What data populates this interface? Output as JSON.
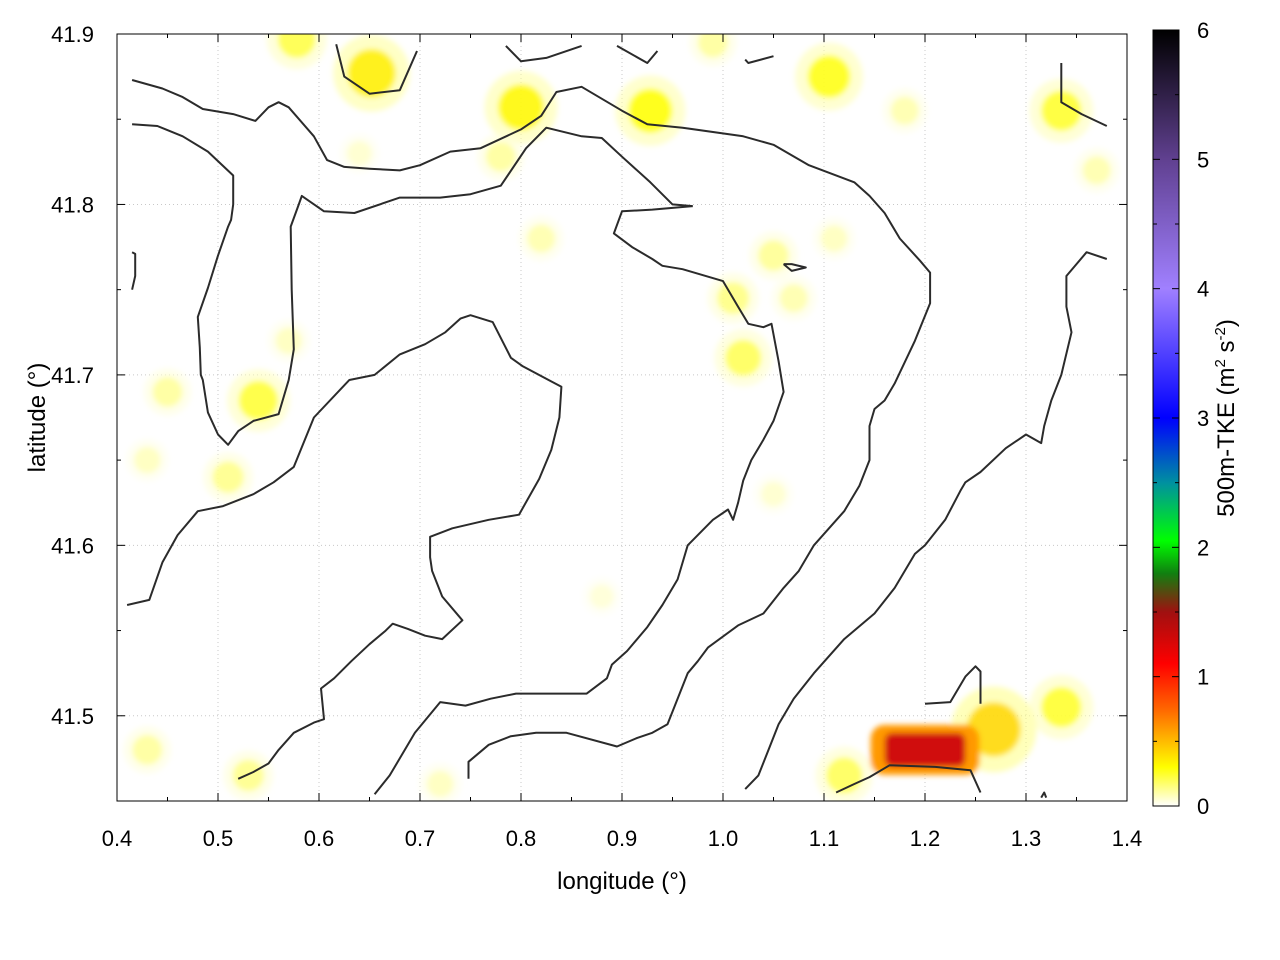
{
  "chart_data": {
    "type": "heatmap",
    "xlabel": "longitude (°)",
    "ylabel": "latitude (°)",
    "colorbar_label_main": "500m-TKE (m",
    "colorbar_label_sup1": "2",
    "colorbar_label_mid": " s",
    "colorbar_label_sup2": "-2",
    "colorbar_label_end": ")",
    "xlim": [
      0.4,
      1.4
    ],
    "ylim": [
      41.45,
      41.9
    ],
    "xticks": [
      0.4,
      0.5,
      0.6,
      0.7,
      0.8,
      0.9,
      1.0,
      1.1,
      1.2,
      1.3,
      1.4
    ],
    "xtick_labels": [
      "0.4",
      "0.5",
      "0.6",
      "0.7",
      "0.8",
      "0.9",
      "1.0",
      "1.1",
      "1.2",
      "1.3",
      "1.4"
    ],
    "yticks": [
      41.5,
      41.6,
      41.7,
      41.8,
      41.9
    ],
    "ytick_labels": [
      "41.5",
      "41.6",
      "41.7",
      "41.8",
      "41.9"
    ],
    "clim": [
      0,
      6
    ],
    "cbar_ticks": [
      0,
      1,
      2,
      3,
      4,
      5,
      6
    ],
    "cbar_tick_labels": [
      "0",
      "1",
      "2",
      "3",
      "4",
      "5",
      "6"
    ],
    "colormap_stops": [
      {
        "v": 0,
        "c": "#ffffff"
      },
      {
        "v": 0.3,
        "c": "#ffff00"
      },
      {
        "v": 0.75,
        "c": "#ff6600"
      },
      {
        "v": 1.1,
        "c": "#ff0000"
      },
      {
        "v": 1.5,
        "c": "#a01010"
      },
      {
        "v": 1.8,
        "c": "#108010"
      },
      {
        "v": 2.05,
        "c": "#00ff00"
      },
      {
        "v": 2.5,
        "c": "#0090a0"
      },
      {
        "v": 3.0,
        "c": "#0000ff"
      },
      {
        "v": 4.0,
        "c": "#a080ff"
      },
      {
        "v": 5.0,
        "c": "#604090"
      },
      {
        "v": 6.0,
        "c": "#000000"
      }
    ],
    "grid": true,
    "hotspots": [
      {
        "lon": 0.578,
        "lat": 41.897,
        "v": 0.22
      },
      {
        "lon": 0.652,
        "lat": 41.877,
        "v": 0.35
      },
      {
        "lon": 0.8,
        "lat": 41.857,
        "v": 0.32
      },
      {
        "lon": 0.78,
        "lat": 41.828,
        "v": 0.12
      },
      {
        "lon": 0.928,
        "lat": 41.855,
        "v": 0.3
      },
      {
        "lon": 0.99,
        "lat": 41.895,
        "v": 0.12
      },
      {
        "lon": 1.105,
        "lat": 41.875,
        "v": 0.28
      },
      {
        "lon": 1.18,
        "lat": 41.855,
        "v": 0.1
      },
      {
        "lon": 1.335,
        "lat": 41.855,
        "v": 0.25
      },
      {
        "lon": 1.37,
        "lat": 41.82,
        "v": 0.1
      },
      {
        "lon": 0.82,
        "lat": 41.78,
        "v": 0.1
      },
      {
        "lon": 1.05,
        "lat": 41.77,
        "v": 0.13
      },
      {
        "lon": 1.01,
        "lat": 41.745,
        "v": 0.15
      },
      {
        "lon": 1.02,
        "lat": 41.71,
        "v": 0.2
      },
      {
        "lon": 1.07,
        "lat": 41.745,
        "v": 0.1
      },
      {
        "lon": 1.11,
        "lat": 41.78,
        "v": 0.08
      },
      {
        "lon": 0.54,
        "lat": 41.685,
        "v": 0.24
      },
      {
        "lon": 0.45,
        "lat": 41.69,
        "v": 0.12
      },
      {
        "lon": 0.51,
        "lat": 41.64,
        "v": 0.14
      },
      {
        "lon": 0.43,
        "lat": 41.65,
        "v": 0.08
      },
      {
        "lon": 0.57,
        "lat": 41.72,
        "v": 0.08
      },
      {
        "lon": 0.64,
        "lat": 41.83,
        "v": 0.06
      },
      {
        "lon": 0.43,
        "lat": 41.48,
        "v": 0.12
      },
      {
        "lon": 0.53,
        "lat": 41.465,
        "v": 0.14
      },
      {
        "lon": 0.72,
        "lat": 41.46,
        "v": 0.08
      },
      {
        "lon": 1.12,
        "lat": 41.465,
        "v": 0.2
      },
      {
        "lon": 1.268,
        "lat": 41.492,
        "v": 0.42
      },
      {
        "lon": 1.335,
        "lat": 41.505,
        "v": 0.25
      },
      {
        "lon": 1.05,
        "lat": 41.63,
        "v": 0.06
      },
      {
        "lon": 0.88,
        "lat": 41.57,
        "v": 0.05
      }
    ],
    "hot_bar": {
      "lon_min": 1.16,
      "lon_max": 1.24,
      "lat_min": 41.47,
      "lat_max": 41.49,
      "v": 1.3
    },
    "contours": [
      [
        [
          0.415,
          41.873
        ],
        [
          0.445,
          41.868
        ],
        [
          0.465,
          41.863
        ],
        [
          0.485,
          41.856
        ],
        [
          0.515,
          41.853
        ],
        [
          0.537,
          41.849
        ],
        [
          0.55,
          41.857
        ],
        [
          0.56,
          41.86
        ],
        [
          0.57,
          41.857
        ],
        [
          0.595,
          41.84
        ],
        [
          0.608,
          41.826
        ],
        [
          0.625,
          41.822
        ],
        [
          0.65,
          41.821
        ],
        [
          0.68,
          41.82
        ],
        [
          0.7,
          41.823
        ],
        [
          0.73,
          41.831
        ],
        [
          0.76,
          41.833
        ],
        [
          0.8,
          41.844
        ],
        [
          0.82,
          41.852
        ],
        [
          0.835,
          41.866
        ],
        [
          0.86,
          41.869
        ],
        [
          0.9,
          41.855
        ],
        [
          0.925,
          41.847
        ],
        [
          0.96,
          41.845
        ],
        [
          1.02,
          41.84
        ],
        [
          1.05,
          41.835
        ],
        [
          1.085,
          41.823
        ],
        [
          1.13,
          41.813
        ],
        [
          1.145,
          41.805
        ],
        [
          1.16,
          41.795
        ],
        [
          1.175,
          41.78
        ],
        [
          1.195,
          41.767
        ],
        [
          1.205,
          41.76
        ],
        [
          1.205,
          41.742
        ],
        [
          1.19,
          41.72
        ],
        [
          1.17,
          41.695
        ],
        [
          1.16,
          41.685
        ],
        [
          1.15,
          41.68
        ],
        [
          1.145,
          41.67
        ],
        [
          1.145,
          41.65
        ],
        [
          1.135,
          41.635
        ],
        [
          1.12,
          41.62
        ],
        [
          1.09,
          41.6
        ],
        [
          1.075,
          41.585
        ],
        [
          1.06,
          41.575
        ],
        [
          1.04,
          41.56
        ],
        [
          1.015,
          41.553
        ],
        [
          0.985,
          41.54
        ],
        [
          0.975,
          41.532
        ],
        [
          0.965,
          41.525
        ],
        [
          0.945,
          41.495
        ],
        [
          0.93,
          41.49
        ],
        [
          0.915,
          41.487
        ],
        [
          0.895,
          41.482
        ],
        [
          0.845,
          41.49
        ],
        [
          0.815,
          41.49
        ],
        [
          0.79,
          41.488
        ],
        [
          0.768,
          41.483
        ],
        [
          0.748,
          41.473
        ],
        [
          0.748,
          41.463
        ]
      ],
      [
        [
          0.415,
          41.847
        ],
        [
          0.44,
          41.846
        ],
        [
          0.465,
          41.84
        ],
        [
          0.49,
          41.831
        ],
        [
          0.515,
          41.817
        ],
        [
          0.515,
          41.8
        ],
        [
          0.513,
          41.791
        ],
        [
          0.51,
          41.787
        ],
        [
          0.5,
          41.77
        ],
        [
          0.49,
          41.751
        ],
        [
          0.48,
          41.734
        ],
        [
          0.482,
          41.716
        ],
        [
          0.483,
          41.7
        ],
        [
          0.485,
          41.697
        ],
        [
          0.49,
          41.678
        ],
        [
          0.5,
          41.665
        ],
        [
          0.51,
          41.659
        ],
        [
          0.52,
          41.667
        ],
        [
          0.535,
          41.673
        ],
        [
          0.56,
          41.677
        ],
        [
          0.57,
          41.697
        ],
        [
          0.575,
          41.715
        ],
        [
          0.573,
          41.75
        ],
        [
          0.572,
          41.787
        ],
        [
          0.58,
          41.8
        ],
        [
          0.583,
          41.805
        ],
        [
          0.605,
          41.796
        ],
        [
          0.635,
          41.795
        ],
        [
          0.68,
          41.804
        ],
        [
          0.72,
          41.804
        ],
        [
          0.75,
          41.806
        ],
        [
          0.78,
          41.811
        ],
        [
          0.805,
          41.833
        ],
        [
          0.825,
          41.845
        ],
        [
          0.86,
          41.84
        ],
        [
          0.88,
          41.839
        ],
        [
          0.9,
          41.828
        ],
        [
          0.928,
          41.813
        ],
        [
          0.95,
          41.8
        ],
        [
          0.97,
          41.799
        ]
      ],
      [
        [
          0.97,
          41.799
        ],
        [
          0.93,
          41.797
        ],
        [
          0.9,
          41.796
        ],
        [
          0.892,
          41.783
        ],
        [
          0.91,
          41.775
        ],
        [
          0.93,
          41.768
        ],
        [
          0.94,
          41.764
        ],
        [
          0.96,
          41.762
        ],
        [
          1.0,
          41.755
        ],
        [
          1.015,
          41.74
        ],
        [
          1.025,
          41.73
        ],
        [
          1.04,
          41.728
        ],
        [
          1.048,
          41.73
        ],
        [
          1.055,
          41.708
        ],
        [
          1.06,
          41.69
        ],
        [
          1.05,
          41.673
        ],
        [
          1.04,
          41.662
        ],
        [
          1.028,
          41.65
        ],
        [
          1.02,
          41.638
        ],
        [
          1.015,
          41.625
        ],
        [
          1.01,
          41.615
        ],
        [
          1.005,
          41.621
        ],
        [
          0.99,
          41.615
        ],
        [
          0.965,
          41.6
        ],
        [
          0.955,
          41.58
        ],
        [
          0.94,
          41.565
        ],
        [
          0.925,
          41.552
        ],
        [
          0.905,
          41.538
        ],
        [
          0.89,
          41.53
        ],
        [
          0.885,
          41.522
        ],
        [
          0.865,
          41.513
        ],
        [
          0.845,
          41.513
        ],
        [
          0.795,
          41.513
        ],
        [
          0.77,
          41.51
        ],
        [
          0.745,
          41.506
        ],
        [
          0.72,
          41.508
        ],
        [
          0.695,
          41.49
        ],
        [
          0.67,
          41.465
        ],
        [
          0.655,
          41.454
        ]
      ],
      [
        [
          0.41,
          41.565
        ],
        [
          0.432,
          41.568
        ],
        [
          0.445,
          41.59
        ],
        [
          0.46,
          41.606
        ],
        [
          0.48,
          41.62
        ],
        [
          0.505,
          41.623
        ],
        [
          0.535,
          41.63
        ],
        [
          0.555,
          41.637
        ],
        [
          0.575,
          41.646
        ],
        [
          0.595,
          41.675
        ],
        [
          0.63,
          41.697
        ],
        [
          0.655,
          41.7
        ],
        [
          0.68,
          41.712
        ],
        [
          0.705,
          41.718
        ],
        [
          0.725,
          41.725
        ],
        [
          0.74,
          41.733
        ],
        [
          0.75,
          41.735
        ],
        [
          0.772,
          41.731
        ],
        [
          0.79,
          41.71
        ],
        [
          0.802,
          41.705
        ],
        [
          0.84,
          41.693
        ],
        [
          0.838,
          41.675
        ],
        [
          0.83,
          41.656
        ],
        [
          0.818,
          41.639
        ],
        [
          0.798,
          41.618
        ],
        [
          0.768,
          41.615
        ],
        [
          0.732,
          41.61
        ],
        [
          0.71,
          41.605
        ],
        [
          0.71,
          41.593
        ],
        [
          0.712,
          41.585
        ],
        [
          0.722,
          41.57
        ],
        [
          0.742,
          41.556
        ],
        [
          0.722,
          41.545
        ],
        [
          0.705,
          41.547
        ],
        [
          0.688,
          41.551
        ],
        [
          0.673,
          41.554
        ],
        [
          0.666,
          41.55
        ],
        [
          0.65,
          41.542
        ],
        [
          0.632,
          41.532
        ],
        [
          0.615,
          41.522
        ],
        [
          0.602,
          41.516
        ],
        [
          0.605,
          41.498
        ],
        [
          0.595,
          41.496
        ],
        [
          0.575,
          41.49
        ],
        [
          0.56,
          41.48
        ],
        [
          0.55,
          41.472
        ],
        [
          0.535,
          41.467
        ],
        [
          0.52,
          41.463
        ]
      ],
      [
        [
          1.022,
          41.457
        ],
        [
          1.035,
          41.465
        ],
        [
          1.045,
          41.48
        ],
        [
          1.055,
          41.495
        ],
        [
          1.07,
          41.51
        ],
        [
          1.09,
          41.525
        ],
        [
          1.12,
          41.545
        ],
        [
          1.15,
          41.56
        ],
        [
          1.17,
          41.575
        ],
        [
          1.19,
          41.595
        ],
        [
          1.2,
          41.6
        ],
        [
          1.22,
          41.615
        ],
        [
          1.235,
          41.632
        ],
        [
          1.24,
          41.637
        ],
        [
          1.255,
          41.643
        ],
        [
          1.28,
          41.657
        ],
        [
          1.3,
          41.665
        ],
        [
          1.315,
          41.66
        ],
        [
          1.318,
          41.67
        ],
        [
          1.325,
          41.685
        ],
        [
          1.335,
          41.7
        ],
        [
          1.345,
          41.725
        ],
        [
          1.34,
          41.74
        ],
        [
          1.34,
          41.758
        ],
        [
          1.36,
          41.772
        ],
        [
          1.38,
          41.768
        ]
      ],
      [
        [
          1.112,
          41.455
        ],
        [
          1.13,
          41.46
        ],
        [
          1.145,
          41.464
        ],
        [
          1.165,
          41.471
        ],
        [
          1.21,
          41.47
        ],
        [
          1.245,
          41.468
        ],
        [
          1.255,
          41.455
        ]
      ],
      [
        [
          0.617,
          41.894
        ],
        [
          0.625,
          41.875
        ],
        [
          0.65,
          41.865
        ],
        [
          0.68,
          41.867
        ],
        [
          0.697,
          41.89
        ]
      ],
      [
        [
          0.785,
          41.893
        ],
        [
          0.8,
          41.884
        ],
        [
          0.825,
          41.886
        ],
        [
          0.86,
          41.893
        ]
      ],
      [
        [
          0.895,
          41.893
        ],
        [
          0.925,
          41.883
        ],
        [
          0.935,
          41.89
        ]
      ],
      [
        [
          1.022,
          41.885
        ],
        [
          1.025,
          41.883
        ],
        [
          1.05,
          41.887
        ]
      ],
      [
        [
          1.335,
          41.883
        ],
        [
          1.335,
          41.86
        ],
        [
          1.355,
          41.853
        ],
        [
          1.38,
          41.846
        ]
      ],
      [
        [
          1.06,
          41.765
        ],
        [
          1.068,
          41.761
        ],
        [
          1.082,
          41.763
        ],
        [
          1.068,
          41.765
        ],
        [
          1.06,
          41.765
        ]
      ],
      [
        [
          0.415,
          41.772
        ],
        [
          0.418,
          41.771
        ],
        [
          0.418,
          41.758
        ],
        [
          0.415,
          41.75
        ]
      ],
      [
        [
          1.2,
          41.507
        ],
        [
          1.225,
          41.508
        ],
        [
          1.24,
          41.523
        ],
        [
          1.25,
          41.529
        ],
        [
          1.255,
          41.526
        ],
        [
          1.255,
          41.507
        ]
      ],
      [
        [
          1.315,
          41.452
        ],
        [
          1.318,
          41.455
        ],
        [
          1.32,
          41.452
        ]
      ]
    ]
  }
}
